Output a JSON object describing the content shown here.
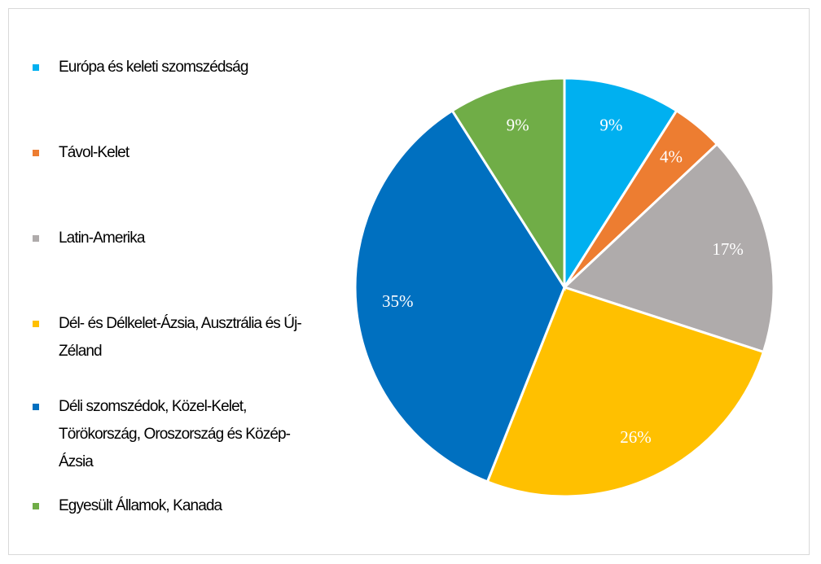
{
  "chart_data": {
    "type": "pie",
    "categories": [
      "Európa és keleti szomszédság",
      "Távol-Kelet",
      "Latin-Amerika",
      "Dél- és Délkelet-Ázsia, Ausztrália és Új-Zéland",
      "Déli szomszédok, Közel-Kelet, Törökország, Oroszország és Közép-Ázsia",
      "Egyesült Államok, Kanada"
    ],
    "values": [
      9,
      4,
      17,
      26,
      35,
      9
    ],
    "value_labels": [
      "9%",
      "4%",
      "17%",
      "26%",
      "35%",
      "9%"
    ],
    "colors": [
      "#00b0f0",
      "#ed7d31",
      "#afabab",
      "#ffc000",
      "#0070c0",
      "#70ad47"
    ],
    "legend": "left"
  }
}
